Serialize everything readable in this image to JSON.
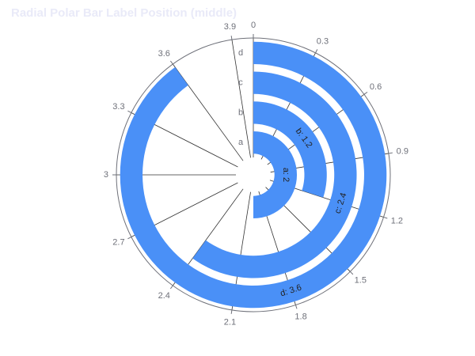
{
  "chart_data": {
    "type": "bar",
    "coordinate": "polar",
    "orientation": "radial",
    "title": "Radial Polar Bar Label Position (middle)",
    "categories": [
      "a",
      "b",
      "c",
      "d"
    ],
    "values": [
      2,
      1.2,
      2.4,
      3.6
    ],
    "bar_labels": [
      "a: 2",
      "b: 1.2",
      "c: 2.4",
      "d: 3.6"
    ],
    "angle_axis": {
      "min": 0,
      "max": 4,
      "ticks": [
        0,
        0.3,
        0.6,
        0.9,
        1.2,
        1.5,
        1.8,
        2.1,
        2.4,
        2.7,
        3,
        3.3,
        3.6,
        3.9
      ],
      "tick_labels": [
        "0",
        "0.3",
        "0.6",
        "0.9",
        "1.2",
        "1.5",
        "1.8",
        "2.1",
        "2.4",
        "2.7",
        "3",
        "3.3",
        "3.6",
        "3.9"
      ],
      "direction": "clockwise",
      "start": "top"
    },
    "label_position": "middle",
    "colors": {
      "bar": "#4a90f7",
      "axis": "#6e7079",
      "split_line": "#333333"
    },
    "legend": "none",
    "grid": true
  }
}
